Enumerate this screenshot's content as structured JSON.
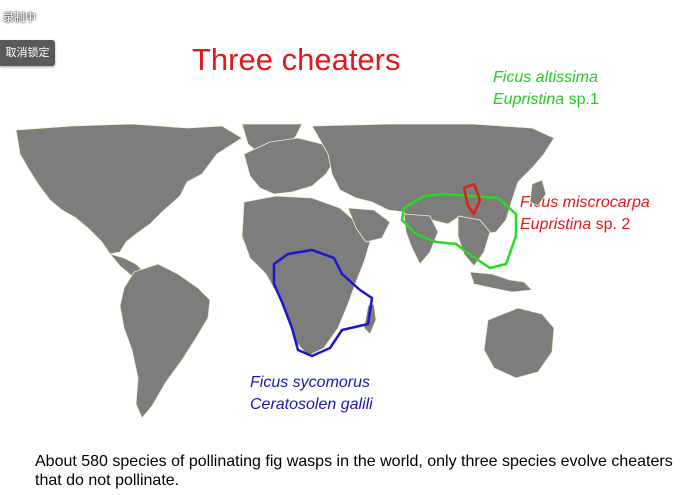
{
  "overlay": {
    "recording_label": "录制中",
    "unlock_button_label": "取消锁定"
  },
  "slide": {
    "title": "Three cheaters",
    "labels": {
      "green": {
        "species_a": "Ficus altissima",
        "species_b_italic": "Eupristina",
        "species_b_rest": " sp.1"
      },
      "red": {
        "species_a": "Ficus miscrocarpa",
        "species_b_italic": "Eupristina",
        "species_b_rest": " sp. 2"
      },
      "blue": {
        "species_a": "Ficus sycomorus",
        "species_b": "Ceratosolen galili"
      }
    },
    "caption": "About 580 species of pollinating fig wasps in the world, only three species evolve cheaters that do not pollinate.",
    "colors": {
      "title": "#e0191b",
      "green_outline": "#22dd22",
      "red_outline": "#dd2211",
      "blue_outline": "#1a1acc",
      "land": "#7d7d7d",
      "ocean": "#ffffff"
    }
  }
}
